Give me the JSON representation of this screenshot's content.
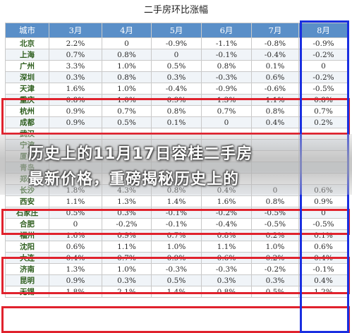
{
  "title": "二手房环比涨幅",
  "columns": [
    "城市",
    "3月",
    "4月",
    "5月",
    "6月",
    "7月",
    "8月"
  ],
  "rows": [
    [
      "北京",
      "2.2%",
      "0",
      "-0.9%",
      "-1.1%",
      "-0.8%",
      "-0.9%"
    ],
    [
      "上海",
      "0.7%",
      "0.8%",
      "0",
      "-0.1%",
      "-0.4%",
      "-0.2%"
    ],
    [
      "广州",
      "3.3%",
      "1.0%",
      "0.5%",
      "0.8%",
      "0.1%",
      "0"
    ],
    [
      "深圳",
      "0.3%",
      "0.8%",
      "0.3%",
      "-0.3%",
      "0.6%",
      "-0.2%"
    ],
    [
      "天津",
      "1.6%",
      "1.0%",
      "-0.4%",
      "-0.9%",
      "-0.6%",
      "-0.5%"
    ],
    [
      "重庆",
      "0.8%",
      "1.0%",
      "0.9%",
      "1.3%",
      "1.1%",
      "0.8%"
    ],
    [
      "杭州",
      "0.9%",
      "0.7%",
      "0.8%",
      "0.7%",
      "0.8%",
      "0.7%"
    ],
    [
      "成都",
      "0.9%",
      "0.5%",
      "0.1%",
      "0",
      "0.4%",
      "0.2%"
    ],
    [
      "武汉",
      "",
      "",
      "",
      "",
      "",
      ""
    ],
    [
      "宁波",
      "",
      "",
      "",
      "",
      "",
      ""
    ],
    [
      "厦门",
      "",
      "",
      "",
      "",
      "",
      ""
    ],
    [
      "青岛",
      "",
      "",
      "",
      "",
      "",
      ""
    ],
    [
      "郑州",
      "",
      "",
      "",
      "",
      "",
      ""
    ],
    [
      "长沙",
      "1.8%",
      "4.3%",
      "0.8%",
      "0.4%",
      "0",
      "0.6%"
    ],
    [
      "西安",
      "1.1%",
      "1.3%",
      "1.4%",
      "1.6%",
      "0.8%",
      "0.9%"
    ],
    [
      "石家庄",
      "0.5%",
      "0.3%",
      "-0.1%",
      "-0.2%",
      "-0.5%",
      "0"
    ],
    [
      "合肥",
      "0",
      "-0.2%",
      "-0.1%",
      "-0.4%",
      "-0.5%",
      "-0.5%"
    ],
    [
      "福州",
      "1.6%",
      "0.9%",
      "0.7%",
      "0.8%",
      "0.2%",
      "0.1%"
    ],
    [
      "沈阳",
      "0.6%",
      "1.1%",
      "1.0%",
      "1.1%",
      "1.0%",
      "0.6%"
    ],
    [
      "大连",
      "0.4%",
      "0.7%",
      "0.9%",
      "0.6%",
      "0.2%",
      "0.4%"
    ],
    [
      "济南",
      "1.3%",
      "1.0%",
      "-0.3%",
      "-0.3%",
      "-0.2%",
      "-0.1%"
    ],
    [
      "昆明",
      "0.9%",
      "0.3%",
      "0.5%",
      "0.3%",
      "0.3%",
      "0.4%"
    ],
    [
      "无锡",
      "1.8%",
      "2.1%",
      "1.4%",
      "0.8%",
      "0.5%",
      "1.2%"
    ]
  ],
  "banner": {
    "line1": "历史上的11月17日容桂二手房",
    "line2": "最新价格，重磅揭秘历史上的"
  },
  "colors": {
    "header_bg": "#5a8fc8",
    "red_box": "#e0222d",
    "blue_box": "#1a2fe0"
  }
}
